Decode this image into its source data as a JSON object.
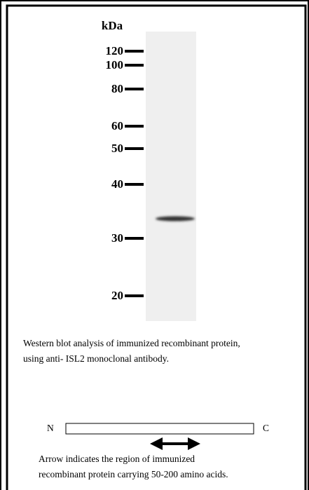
{
  "ladder": {
    "unit": "kDa",
    "markers": [
      "120",
      "100",
      "80",
      "60",
      "50",
      "40",
      "30",
      "20"
    ]
  },
  "caption": [
    "Western blot analysis of immunized recombinant protein,",
    "using anti- ISL2 monoclonal antibody."
  ],
  "diagram": {
    "n_label": "N",
    "c_label": "C"
  },
  "note": [
    "Arrow indicates the region of immunized",
    "recombinant protein carrying 50-200 amino acids."
  ]
}
